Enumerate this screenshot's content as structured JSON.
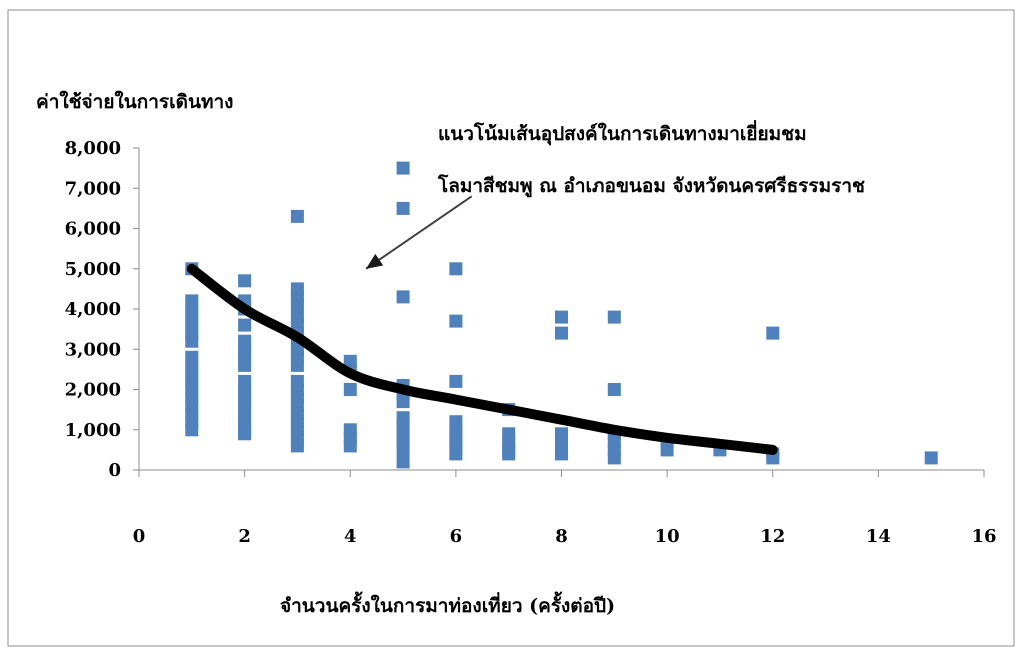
{
  "chart_data": {
    "type": "scatter",
    "ylabel": "ค่าใช้จ่ายในการเดินทาง",
    "xlabel": "จำนวนครั้งในการมาท่องเที่ยว (ครั้งต่อปี)",
    "annotation": {
      "line1": "แนวโน้มเส้นอุปสงค์ในการเดินทางมาเยี่ยมชม",
      "line2": "โลมาสีชมพู ณ อำเภอขนอม จังหวัดนครศรีธรรมราช"
    },
    "xlim": [
      0,
      16
    ],
    "ylim": [
      0,
      8000
    ],
    "x_ticks": [
      0,
      2,
      4,
      6,
      8,
      10,
      12,
      14,
      16
    ],
    "y_ticks": [
      0,
      1000,
      2000,
      3000,
      4000,
      5000,
      6000,
      7000,
      8000
    ],
    "y_tick_labels": [
      "0",
      "1,000",
      "2,000",
      "3,000",
      "4,000",
      "5,000",
      "6,000",
      "7,000",
      "8,000"
    ],
    "grid": false,
    "marker_color": "#4F81BD",
    "trend_color": "#000000",
    "points": [
      {
        "x": 1,
        "y": 5000
      },
      {
        "x": 1,
        "y": 4200
      },
      {
        "x": 1,
        "y": 4000
      },
      {
        "x": 1,
        "y": 3800
      },
      {
        "x": 1,
        "y": 3600
      },
      {
        "x": 1,
        "y": 3400
      },
      {
        "x": 1,
        "y": 3200
      },
      {
        "x": 1,
        "y": 2800
      },
      {
        "x": 1,
        "y": 2600
      },
      {
        "x": 1,
        "y": 2400
      },
      {
        "x": 1,
        "y": 2200
      },
      {
        "x": 1,
        "y": 2000
      },
      {
        "x": 1,
        "y": 1800
      },
      {
        "x": 1,
        "y": 1600
      },
      {
        "x": 1,
        "y": 1400
      },
      {
        "x": 1,
        "y": 1200
      },
      {
        "x": 1,
        "y": 1000
      },
      {
        "x": 2,
        "y": 4700
      },
      {
        "x": 2,
        "y": 4200
      },
      {
        "x": 2,
        "y": 4000
      },
      {
        "x": 2,
        "y": 3600
      },
      {
        "x": 2,
        "y": 3200
      },
      {
        "x": 2,
        "y": 3000
      },
      {
        "x": 2,
        "y": 2800
      },
      {
        "x": 2,
        "y": 2600
      },
      {
        "x": 2,
        "y": 2200
      },
      {
        "x": 2,
        "y": 2000
      },
      {
        "x": 2,
        "y": 1800
      },
      {
        "x": 2,
        "y": 1600
      },
      {
        "x": 2,
        "y": 1400
      },
      {
        "x": 2,
        "y": 1200
      },
      {
        "x": 2,
        "y": 1000
      },
      {
        "x": 2,
        "y": 900
      },
      {
        "x": 3,
        "y": 6300
      },
      {
        "x": 3,
        "y": 4500
      },
      {
        "x": 3,
        "y": 4300
      },
      {
        "x": 3,
        "y": 4100
      },
      {
        "x": 3,
        "y": 3800
      },
      {
        "x": 3,
        "y": 3600
      },
      {
        "x": 3,
        "y": 3400
      },
      {
        "x": 3,
        "y": 3200
      },
      {
        "x": 3,
        "y": 3000
      },
      {
        "x": 3,
        "y": 2800
      },
      {
        "x": 3,
        "y": 2600
      },
      {
        "x": 3,
        "y": 2200
      },
      {
        "x": 3,
        "y": 2000
      },
      {
        "x": 3,
        "y": 1800
      },
      {
        "x": 3,
        "y": 1600
      },
      {
        "x": 3,
        "y": 1400
      },
      {
        "x": 3,
        "y": 1200
      },
      {
        "x": 3,
        "y": 1000
      },
      {
        "x": 3,
        "y": 800
      },
      {
        "x": 3,
        "y": 600
      },
      {
        "x": 4,
        "y": 2700
      },
      {
        "x": 4,
        "y": 2500
      },
      {
        "x": 4,
        "y": 2000
      },
      {
        "x": 4,
        "y": 1000
      },
      {
        "x": 4,
        "y": 800
      },
      {
        "x": 4,
        "y": 600
      },
      {
        "x": 5,
        "y": 7500
      },
      {
        "x": 5,
        "y": 6500
      },
      {
        "x": 5,
        "y": 4300
      },
      {
        "x": 5,
        "y": 2100
      },
      {
        "x": 5,
        "y": 1900
      },
      {
        "x": 5,
        "y": 1700
      },
      {
        "x": 5,
        "y": 1300
      },
      {
        "x": 5,
        "y": 1100
      },
      {
        "x": 5,
        "y": 900
      },
      {
        "x": 5,
        "y": 700
      },
      {
        "x": 5,
        "y": 500
      },
      {
        "x": 5,
        "y": 200
      },
      {
        "x": 6,
        "y": 5000
      },
      {
        "x": 6,
        "y": 3700
      },
      {
        "x": 6,
        "y": 2200
      },
      {
        "x": 6,
        "y": 1200
      },
      {
        "x": 6,
        "y": 1000
      },
      {
        "x": 6,
        "y": 800
      },
      {
        "x": 6,
        "y": 600
      },
      {
        "x": 6,
        "y": 400
      },
      {
        "x": 7,
        "y": 1500
      },
      {
        "x": 7,
        "y": 900
      },
      {
        "x": 7,
        "y": 700
      },
      {
        "x": 7,
        "y": 500
      },
      {
        "x": 7,
        "y": 400
      },
      {
        "x": 8,
        "y": 3800
      },
      {
        "x": 8,
        "y": 3400
      },
      {
        "x": 8,
        "y": 900
      },
      {
        "x": 8,
        "y": 700
      },
      {
        "x": 8,
        "y": 500
      },
      {
        "x": 8,
        "y": 400
      },
      {
        "x": 9,
        "y": 3800
      },
      {
        "x": 9,
        "y": 2000
      },
      {
        "x": 9,
        "y": 900
      },
      {
        "x": 9,
        "y": 700
      },
      {
        "x": 9,
        "y": 500
      },
      {
        "x": 9,
        "y": 300
      },
      {
        "x": 10,
        "y": 700
      },
      {
        "x": 10,
        "y": 500
      },
      {
        "x": 11,
        "y": 500
      },
      {
        "x": 12,
        "y": 3400
      },
      {
        "x": 12,
        "y": 400
      },
      {
        "x": 12,
        "y": 300
      },
      {
        "x": 15,
        "y": 300
      }
    ],
    "trend": [
      {
        "x": 1,
        "y": 5000
      },
      {
        "x": 2,
        "y": 4000
      },
      {
        "x": 3,
        "y": 3300
      },
      {
        "x": 4,
        "y": 2400
      },
      {
        "x": 5,
        "y": 2000
      },
      {
        "x": 6,
        "y": 1750
      },
      {
        "x": 7,
        "y": 1500
      },
      {
        "x": 8,
        "y": 1250
      },
      {
        "x": 9,
        "y": 1000
      },
      {
        "x": 10,
        "y": 800
      },
      {
        "x": 11,
        "y": 650
      },
      {
        "x": 12,
        "y": 500
      }
    ],
    "annotation_arrow": {
      "from": {
        "x": 6.3,
        "y": 6800
      },
      "to": {
        "x": 4.3,
        "y": 5000
      }
    }
  }
}
